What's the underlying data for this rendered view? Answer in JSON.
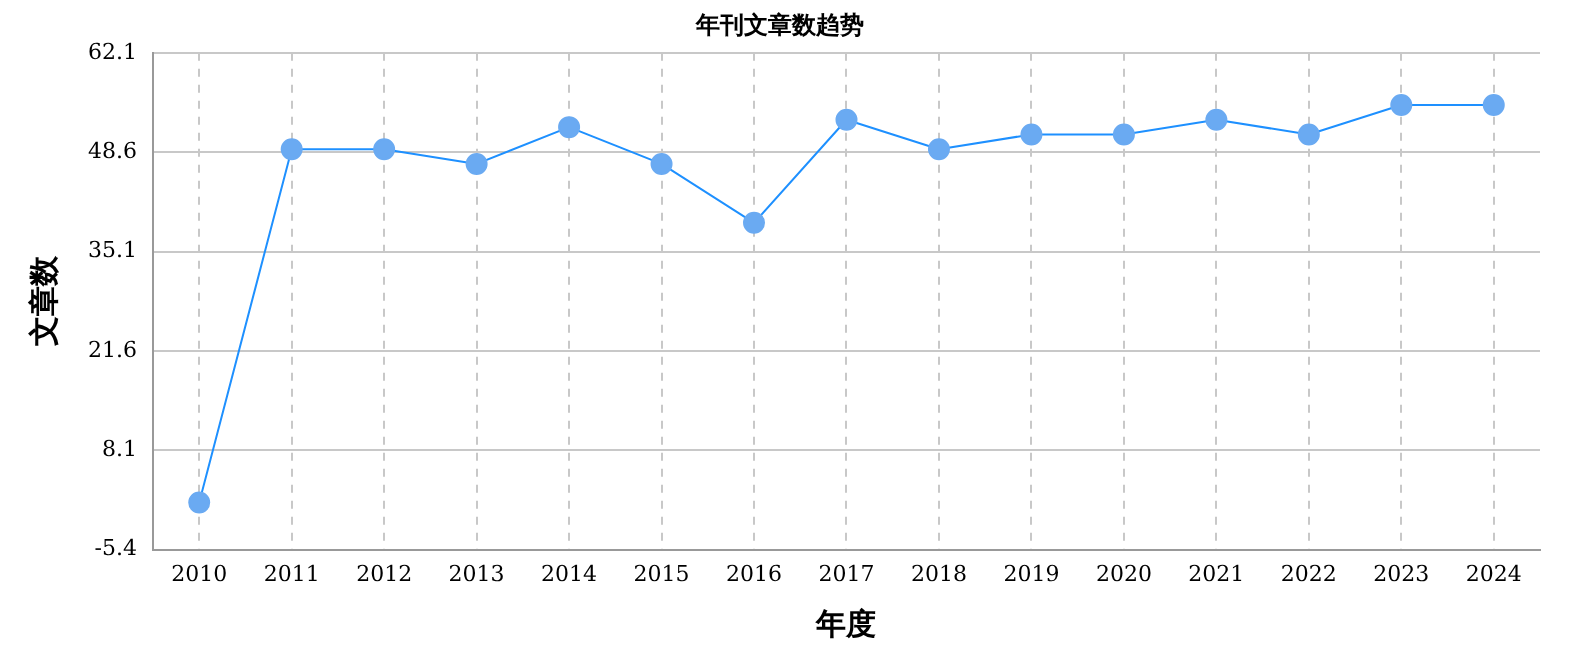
{
  "chart_data": {
    "type": "line",
    "title": "年刊文章数趋势",
    "xlabel": "年度",
    "ylabel": "文章数",
    "categories": [
      "2010",
      "2011",
      "2012",
      "2013",
      "2014",
      "2015",
      "2016",
      "2017",
      "2018",
      "2019",
      "2020",
      "2021",
      "2022",
      "2023",
      "2024"
    ],
    "series": [
      {
        "color": "#1e90ff",
        "values": [
          1,
          49,
          49,
          47,
          52,
          47,
          39,
          53,
          49,
          51,
          51,
          53,
          51,
          55,
          55
        ]
      }
    ],
    "ylim": [
      -5.4,
      62.1
    ],
    "yticks": [
      -5.4,
      8.1,
      21.6,
      35.1,
      48.6,
      62.1
    ],
    "grid": true,
    "legend": false,
    "marker": "circle",
    "line_style": "solid"
  }
}
